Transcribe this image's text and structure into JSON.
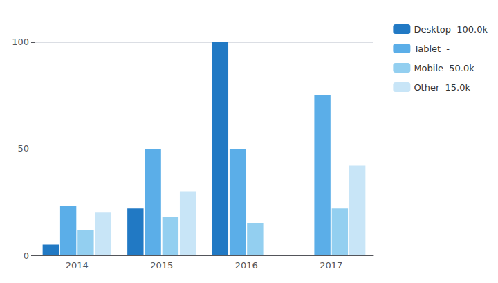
{
  "chart_data": {
    "type": "bar",
    "categories": [
      "2014",
      "2015",
      "2016",
      "2017"
    ],
    "series": [
      {
        "name": "Desktop  100.0k",
        "color": "#2179C4",
        "values": [
          5,
          22,
          100,
          0
        ]
      },
      {
        "name": "Tablet  -",
        "color": "#5BAEE8",
        "values": [
          23,
          50,
          50,
          75
        ]
      },
      {
        "name": "Mobile  50.0k",
        "color": "#93CFF0",
        "values": [
          12,
          18,
          15,
          22
        ]
      },
      {
        "name": "Other  15.0k",
        "color": "#C8E5F7",
        "values": [
          20,
          30,
          0,
          42
        ]
      }
    ],
    "ylim": [
      0,
      110
    ],
    "yticks": [
      0,
      50,
      100
    ],
    "grid": true,
    "legend": "right"
  }
}
